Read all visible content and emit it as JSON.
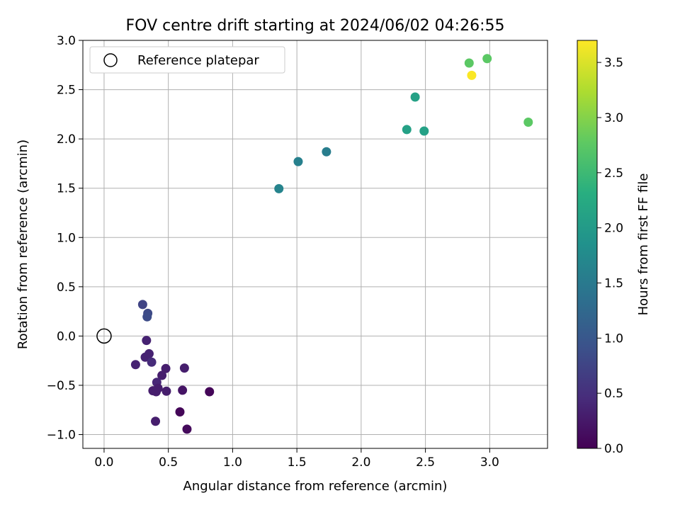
{
  "chart_data": {
    "type": "scatter",
    "title": "FOV centre drift starting at 2024/06/02 04:26:55",
    "xlabel": "Angular distance from reference (arcmin)",
    "ylabel": "Rotation from reference (arcmin)",
    "xlim": [
      -0.165,
      3.45
    ],
    "ylim": [
      -1.14,
      3.0
    ],
    "xticks": [
      0.0,
      0.5,
      1.0,
      1.5,
      2.0,
      2.5,
      3.0
    ],
    "yticks": [
      -1.0,
      -0.5,
      0.0,
      0.5,
      1.0,
      1.5,
      2.0,
      2.5,
      3.0
    ],
    "xtick_labels": [
      "0.0",
      "0.5",
      "1.0",
      "1.5",
      "2.0",
      "2.5",
      "3.0"
    ],
    "ytick_labels": [
      "−1.0",
      "−0.5",
      "0.0",
      "0.5",
      "1.0",
      "1.5",
      "2.0",
      "2.5",
      "3.0"
    ],
    "grid": true,
    "legend": {
      "position": "top-left",
      "entries": [
        "Reference platepar"
      ]
    },
    "reference": {
      "x": 0.0,
      "y": 0.0
    },
    "colormap": "viridis",
    "colorbar": {
      "label": "Hours from first FF file",
      "range": [
        0.0,
        3.7
      ],
      "ticks": [
        0.0,
        0.5,
        1.0,
        1.5,
        2.0,
        2.5,
        3.0,
        3.5
      ],
      "tick_labels": [
        "0.0",
        "0.5",
        "1.0",
        "1.5",
        "2.0",
        "2.5",
        "3.0",
        "3.5"
      ]
    },
    "points": [
      {
        "x": 0.3,
        "y": 0.32,
        "hours": 0.75
      },
      {
        "x": 0.34,
        "y": 0.23,
        "hours": 0.82
      },
      {
        "x": 0.335,
        "y": 0.195,
        "hours": 0.85
      },
      {
        "x": 0.33,
        "y": -0.045,
        "hours": 0.35
      },
      {
        "x": 0.245,
        "y": -0.29,
        "hours": 0.35
      },
      {
        "x": 0.32,
        "y": -0.215,
        "hours": 0.35
      },
      {
        "x": 0.35,
        "y": -0.18,
        "hours": 0.35
      },
      {
        "x": 0.37,
        "y": -0.265,
        "hours": 0.45
      },
      {
        "x": 0.48,
        "y": -0.33,
        "hours": 0.3
      },
      {
        "x": 0.45,
        "y": -0.4,
        "hours": 0.3
      },
      {
        "x": 0.41,
        "y": -0.47,
        "hours": 0.4
      },
      {
        "x": 0.42,
        "y": -0.53,
        "hours": 0.3
      },
      {
        "x": 0.38,
        "y": -0.555,
        "hours": 0.3
      },
      {
        "x": 0.405,
        "y": -0.565,
        "hours": 0.3
      },
      {
        "x": 0.485,
        "y": -0.56,
        "hours": 0.3
      },
      {
        "x": 0.4,
        "y": -0.865,
        "hours": 0.3
      },
      {
        "x": 0.625,
        "y": -0.325,
        "hours": 0.3
      },
      {
        "x": 0.61,
        "y": -0.55,
        "hours": 0.2
      },
      {
        "x": 0.82,
        "y": -0.565,
        "hours": 0.05
      },
      {
        "x": 0.59,
        "y": -0.77,
        "hours": 0.05
      },
      {
        "x": 0.645,
        "y": -0.945,
        "hours": 0.1
      },
      {
        "x": 1.36,
        "y": 1.495,
        "hours": 1.65
      },
      {
        "x": 1.51,
        "y": 1.77,
        "hours": 1.6
      },
      {
        "x": 1.73,
        "y": 1.87,
        "hours": 1.55
      },
      {
        "x": 2.42,
        "y": 2.425,
        "hours": 2.1
      },
      {
        "x": 2.355,
        "y": 2.095,
        "hours": 2.1
      },
      {
        "x": 2.49,
        "y": 2.08,
        "hours": 2.1
      },
      {
        "x": 2.84,
        "y": 2.77,
        "hours": 2.75
      },
      {
        "x": 2.98,
        "y": 2.815,
        "hours": 2.75
      },
      {
        "x": 2.86,
        "y": 2.645,
        "hours": 3.68
      },
      {
        "x": 3.3,
        "y": 2.17,
        "hours": 2.75
      }
    ]
  }
}
